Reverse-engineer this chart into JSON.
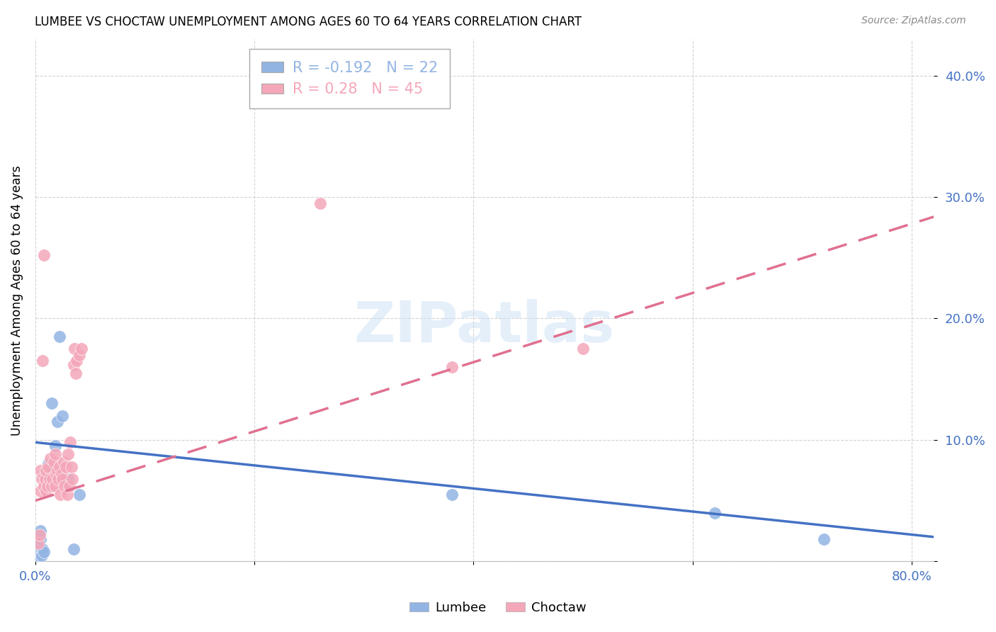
{
  "title": "LUMBEE VS CHOCTAW UNEMPLOYMENT AMONG AGES 60 TO 64 YEARS CORRELATION CHART",
  "source": "Source: ZipAtlas.com",
  "ylabel": "Unemployment Among Ages 60 to 64 years",
  "xlim": [
    0.0,
    0.82
  ],
  "ylim": [
    0.0,
    0.43
  ],
  "yticks": [
    0.0,
    0.1,
    0.2,
    0.3,
    0.4
  ],
  "ytick_labels": [
    "",
    "10.0%",
    "20.0%",
    "30.0%",
    "40.0%"
  ],
  "xticks": [
    0.0,
    0.2,
    0.4,
    0.6,
    0.8
  ],
  "xtick_labels": [
    "0.0%",
    "",
    "",
    "",
    "80.0%"
  ],
  "lumbee_color": "#92b4e3",
  "choctaw_color": "#f4a7b9",
  "lumbee_line_color": "#4472c4",
  "choctaw_line_color": "#e07090",
  "lumbee_R": -0.192,
  "lumbee_N": 22,
  "choctaw_R": 0.28,
  "choctaw_N": 45,
  "watermark_text": "ZIPatlas",
  "lumbee_x": [
    0.003,
    0.003,
    0.004,
    0.005,
    0.005,
    0.006,
    0.007,
    0.008,
    0.01,
    0.012,
    0.015,
    0.018,
    0.02,
    0.022,
    0.025,
    0.028,
    0.03,
    0.035,
    0.04,
    0.38,
    0.62,
    0.72
  ],
  "lumbee_y": [
    0.005,
    0.015,
    0.012,
    0.018,
    0.025,
    0.005,
    0.01,
    0.008,
    0.075,
    0.08,
    0.13,
    0.095,
    0.115,
    0.185,
    0.12,
    0.065,
    0.068,
    0.01,
    0.055,
    0.055,
    0.04,
    0.018
  ],
  "choctaw_x": [
    0.003,
    0.004,
    0.005,
    0.005,
    0.006,
    0.007,
    0.008,
    0.008,
    0.009,
    0.01,
    0.01,
    0.011,
    0.012,
    0.013,
    0.014,
    0.015,
    0.016,
    0.017,
    0.018,
    0.018,
    0.019,
    0.02,
    0.021,
    0.022,
    0.023,
    0.024,
    0.025,
    0.026,
    0.027,
    0.028,
    0.029,
    0.03,
    0.031,
    0.032,
    0.033,
    0.034,
    0.035,
    0.036,
    0.037,
    0.038,
    0.04,
    0.042,
    0.26,
    0.38,
    0.5
  ],
  "choctaw_y": [
    0.015,
    0.022,
    0.058,
    0.075,
    0.068,
    0.165,
    0.252,
    0.062,
    0.068,
    0.058,
    0.075,
    0.062,
    0.078,
    0.068,
    0.085,
    0.062,
    0.068,
    0.082,
    0.062,
    0.088,
    0.072,
    0.075,
    0.068,
    0.078,
    0.055,
    0.072,
    0.068,
    0.082,
    0.062,
    0.078,
    0.055,
    0.088,
    0.062,
    0.098,
    0.078,
    0.068,
    0.162,
    0.175,
    0.155,
    0.165,
    0.17,
    0.175,
    0.295,
    0.16,
    0.175
  ]
}
